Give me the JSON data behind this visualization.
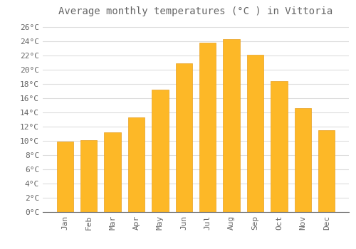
{
  "title": "Average monthly temperatures (°C ) in Vittoria",
  "months": [
    "Jan",
    "Feb",
    "Mar",
    "Apr",
    "May",
    "Jun",
    "Jul",
    "Aug",
    "Sep",
    "Oct",
    "Nov",
    "Dec"
  ],
  "values": [
    9.9,
    10.1,
    11.2,
    13.3,
    17.2,
    20.9,
    23.8,
    24.3,
    22.1,
    18.4,
    14.6,
    11.5
  ],
  "bar_color": "#FDB827",
  "bar_edge_color": "#E8A020",
  "background_color": "#FFFFFF",
  "grid_color": "#DDDDDD",
  "text_color": "#666666",
  "ylim": [
    0,
    27
  ],
  "ytick_step": 2,
  "title_fontsize": 10,
  "tick_fontsize": 8,
  "bar_width": 0.7
}
